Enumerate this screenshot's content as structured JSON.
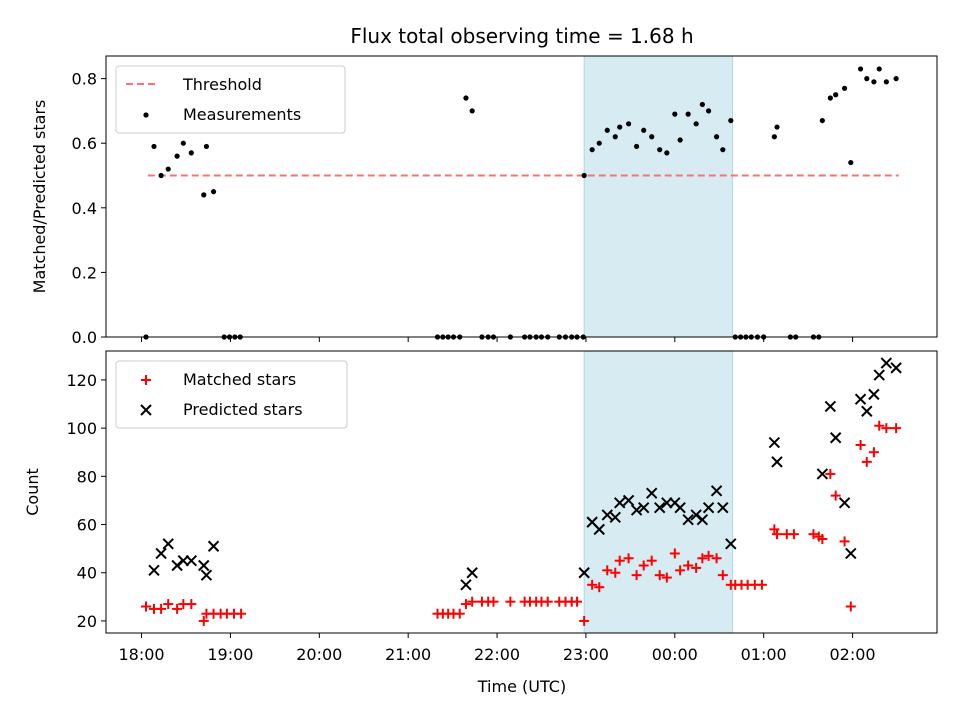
{
  "chart_data": {
    "title": "Flux total observing time = 1.68 h",
    "xlabel": "Time (UTC)",
    "x_unit": "hours",
    "xlim": [
      -0.4,
      8.95
    ],
    "x_ticks": [
      {
        "value": 0,
        "label": "18:00"
      },
      {
        "value": 1,
        "label": "19:00"
      },
      {
        "value": 2,
        "label": "20:00"
      },
      {
        "value": 3,
        "label": "21:00"
      },
      {
        "value": 4,
        "label": "22:00"
      },
      {
        "value": 5,
        "label": "23:00"
      },
      {
        "value": 6,
        "label": "00:00"
      },
      {
        "value": 7,
        "label": "01:00"
      },
      {
        "value": 8,
        "label": "02:00"
      }
    ],
    "shaded_span": {
      "x0": 4.98,
      "x1": 6.65,
      "color": "#add8e6"
    },
    "panels": [
      {
        "type": "scatter",
        "ylabel": "Matched/Predicted stars",
        "ylim": [
          0,
          0.87
        ],
        "y_ticks": [
          {
            "value": 0.0,
            "label": "0.0"
          },
          {
            "value": 0.2,
            "label": "0.2"
          },
          {
            "value": 0.4,
            "label": "0.4"
          },
          {
            "value": 0.6,
            "label": "0.6"
          },
          {
            "value": 0.8,
            "label": "0.8"
          }
        ],
        "legend_position": "top-left",
        "threshold": {
          "name": "Threshold",
          "y": 0.5,
          "x0": 0.07,
          "x1": 8.52,
          "color": "#ff7070"
        },
        "series": [
          {
            "name": "Measurements",
            "marker": "dot",
            "color": "#000000",
            "points": [
              [
                0.05,
                0.0
              ],
              [
                0.14,
                0.59
              ],
              [
                0.22,
                0.5
              ],
              [
                0.3,
                0.52
              ],
              [
                0.4,
                0.56
              ],
              [
                0.47,
                0.6
              ],
              [
                0.56,
                0.57
              ],
              [
                0.7,
                0.44
              ],
              [
                0.73,
                0.59
              ],
              [
                0.81,
                0.45
              ],
              [
                0.93,
                0.0
              ],
              [
                0.99,
                0.0
              ],
              [
                1.05,
                0.0
              ],
              [
                1.11,
                0.0
              ],
              [
                3.33,
                0.0
              ],
              [
                3.39,
                0.0
              ],
              [
                3.45,
                0.0
              ],
              [
                3.51,
                0.0
              ],
              [
                3.58,
                0.0
              ],
              [
                3.65,
                0.74
              ],
              [
                3.72,
                0.7
              ],
              [
                3.83,
                0.0
              ],
              [
                3.9,
                0.0
              ],
              [
                3.96,
                0.0
              ],
              [
                4.15,
                0.0
              ],
              [
                4.31,
                0.0
              ],
              [
                4.37,
                0.0
              ],
              [
                4.44,
                0.0
              ],
              [
                4.5,
                0.0
              ],
              [
                4.57,
                0.0
              ],
              [
                4.7,
                0.0
              ],
              [
                4.77,
                0.0
              ],
              [
                4.84,
                0.0
              ],
              [
                4.9,
                0.0
              ],
              [
                4.97,
                0.0
              ],
              [
                4.98,
                0.5
              ],
              [
                5.07,
                0.58
              ],
              [
                5.15,
                0.6
              ],
              [
                5.24,
                0.64
              ],
              [
                5.33,
                0.62
              ],
              [
                5.38,
                0.65
              ],
              [
                5.48,
                0.66
              ],
              [
                5.57,
                0.59
              ],
              [
                5.65,
                0.64
              ],
              [
                5.74,
                0.62
              ],
              [
                5.83,
                0.58
              ],
              [
                5.91,
                0.57
              ],
              [
                6.0,
                0.69
              ],
              [
                6.06,
                0.61
              ],
              [
                6.15,
                0.69
              ],
              [
                6.24,
                0.66
              ],
              [
                6.31,
                0.72
              ],
              [
                6.38,
                0.7
              ],
              [
                6.47,
                0.62
              ],
              [
                6.54,
                0.58
              ],
              [
                6.63,
                0.67
              ],
              [
                6.68,
                0.0
              ],
              [
                6.74,
                0.0
              ],
              [
                6.8,
                0.0
              ],
              [
                6.86,
                0.0
              ],
              [
                6.93,
                0.0
              ],
              [
                7.0,
                0.0
              ],
              [
                7.12,
                0.62
              ],
              [
                7.15,
                0.65
              ],
              [
                7.3,
                0.0
              ],
              [
                7.36,
                0.0
              ],
              [
                7.56,
                0.0
              ],
              [
                7.62,
                0.0
              ],
              [
                7.66,
                0.67
              ],
              [
                7.75,
                0.74
              ],
              [
                7.81,
                0.75
              ],
              [
                7.91,
                0.77
              ],
              [
                7.98,
                0.54
              ],
              [
                8.09,
                0.83
              ],
              [
                8.16,
                0.8
              ],
              [
                8.24,
                0.79
              ],
              [
                8.3,
                0.83
              ],
              [
                8.38,
                0.79
              ],
              [
                8.49,
                0.8
              ]
            ]
          }
        ]
      },
      {
        "type": "scatter",
        "ylabel": "Count",
        "ylim": [
          15,
          132
        ],
        "y_ticks": [
          {
            "value": 20,
            "label": "20"
          },
          {
            "value": 40,
            "label": "40"
          },
          {
            "value": 60,
            "label": "60"
          },
          {
            "value": 80,
            "label": "80"
          },
          {
            "value": 100,
            "label": "100"
          },
          {
            "value": 120,
            "label": "120"
          }
        ],
        "legend_position": "top-left",
        "series": [
          {
            "name": "Matched stars",
            "marker": "plus",
            "color": "#ff0000",
            "points": [
              [
                0.05,
                26
              ],
              [
                0.14,
                25
              ],
              [
                0.22,
                25
              ],
              [
                0.3,
                27
              ],
              [
                0.4,
                25
              ],
              [
                0.47,
                27
              ],
              [
                0.56,
                27
              ],
              [
                0.7,
                20
              ],
              [
                0.73,
                23
              ],
              [
                0.81,
                23
              ],
              [
                0.89,
                23
              ],
              [
                0.96,
                23
              ],
              [
                1.04,
                23
              ],
              [
                1.12,
                23
              ],
              [
                3.33,
                23
              ],
              [
                3.39,
                23
              ],
              [
                3.45,
                23
              ],
              [
                3.51,
                23
              ],
              [
                3.58,
                23
              ],
              [
                3.65,
                27
              ],
              [
                3.72,
                28
              ],
              [
                3.83,
                28
              ],
              [
                3.9,
                28
              ],
              [
                3.96,
                28
              ],
              [
                4.15,
                28
              ],
              [
                4.31,
                28
              ],
              [
                4.37,
                28
              ],
              [
                4.44,
                28
              ],
              [
                4.5,
                28
              ],
              [
                4.57,
                28
              ],
              [
                4.7,
                28
              ],
              [
                4.77,
                28
              ],
              [
                4.84,
                28
              ],
              [
                4.9,
                28
              ],
              [
                4.98,
                20
              ],
              [
                5.07,
                35
              ],
              [
                5.15,
                34
              ],
              [
                5.24,
                41
              ],
              [
                5.33,
                40
              ],
              [
                5.38,
                45
              ],
              [
                5.48,
                46
              ],
              [
                5.57,
                39
              ],
              [
                5.65,
                43
              ],
              [
                5.74,
                45
              ],
              [
                5.83,
                39
              ],
              [
                5.91,
                38
              ],
              [
                6.0,
                48
              ],
              [
                6.06,
                41
              ],
              [
                6.15,
                43
              ],
              [
                6.24,
                42
              ],
              [
                6.31,
                46
              ],
              [
                6.38,
                47
              ],
              [
                6.47,
                46
              ],
              [
                6.54,
                39
              ],
              [
                6.63,
                35
              ],
              [
                6.68,
                35
              ],
              [
                6.75,
                35
              ],
              [
                6.82,
                35
              ],
              [
                6.9,
                35
              ],
              [
                6.98,
                35
              ],
              [
                7.12,
                58
              ],
              [
                7.15,
                56
              ],
              [
                7.26,
                56
              ],
              [
                7.34,
                56
              ],
              [
                7.56,
                56
              ],
              [
                7.62,
                55
              ],
              [
                7.66,
                54
              ],
              [
                7.75,
                81
              ],
              [
                7.81,
                72
              ],
              [
                7.91,
                53
              ],
              [
                7.98,
                26
              ],
              [
                8.09,
                93
              ],
              [
                8.16,
                86
              ],
              [
                8.24,
                90
              ],
              [
                8.3,
                101
              ],
              [
                8.38,
                100
              ],
              [
                8.49,
                100
              ]
            ]
          },
          {
            "name": "Predicted stars",
            "marker": "x",
            "color": "#000000",
            "points": [
              [
                0.14,
                41
              ],
              [
                0.22,
                48
              ],
              [
                0.3,
                52
              ],
              [
                0.4,
                43
              ],
              [
                0.47,
                45
              ],
              [
                0.56,
                45
              ],
              [
                0.7,
                43
              ],
              [
                0.73,
                39
              ],
              [
                0.81,
                51
              ],
              [
                3.65,
                35
              ],
              [
                3.72,
                40
              ],
              [
                4.98,
                40
              ],
              [
                5.07,
                61
              ],
              [
                5.15,
                58
              ],
              [
                5.24,
                64
              ],
              [
                5.33,
                63
              ],
              [
                5.38,
                69
              ],
              [
                5.48,
                70
              ],
              [
                5.57,
                66
              ],
              [
                5.65,
                67
              ],
              [
                5.74,
                73
              ],
              [
                5.83,
                67
              ],
              [
                5.91,
                69
              ],
              [
                6.0,
                69
              ],
              [
                6.06,
                67
              ],
              [
                6.15,
                62
              ],
              [
                6.24,
                64
              ],
              [
                6.31,
                62
              ],
              [
                6.38,
                67
              ],
              [
                6.47,
                74
              ],
              [
                6.54,
                67
              ],
              [
                6.63,
                52
              ],
              [
                7.12,
                94
              ],
              [
                7.15,
                86
              ],
              [
                7.66,
                81
              ],
              [
                7.75,
                109
              ],
              [
                7.81,
                96
              ],
              [
                7.91,
                69
              ],
              [
                7.98,
                48
              ],
              [
                8.09,
                112
              ],
              [
                8.16,
                107
              ],
              [
                8.24,
                114
              ],
              [
                8.3,
                122
              ],
              [
                8.38,
                127
              ],
              [
                8.49,
                125
              ]
            ]
          }
        ]
      }
    ]
  }
}
